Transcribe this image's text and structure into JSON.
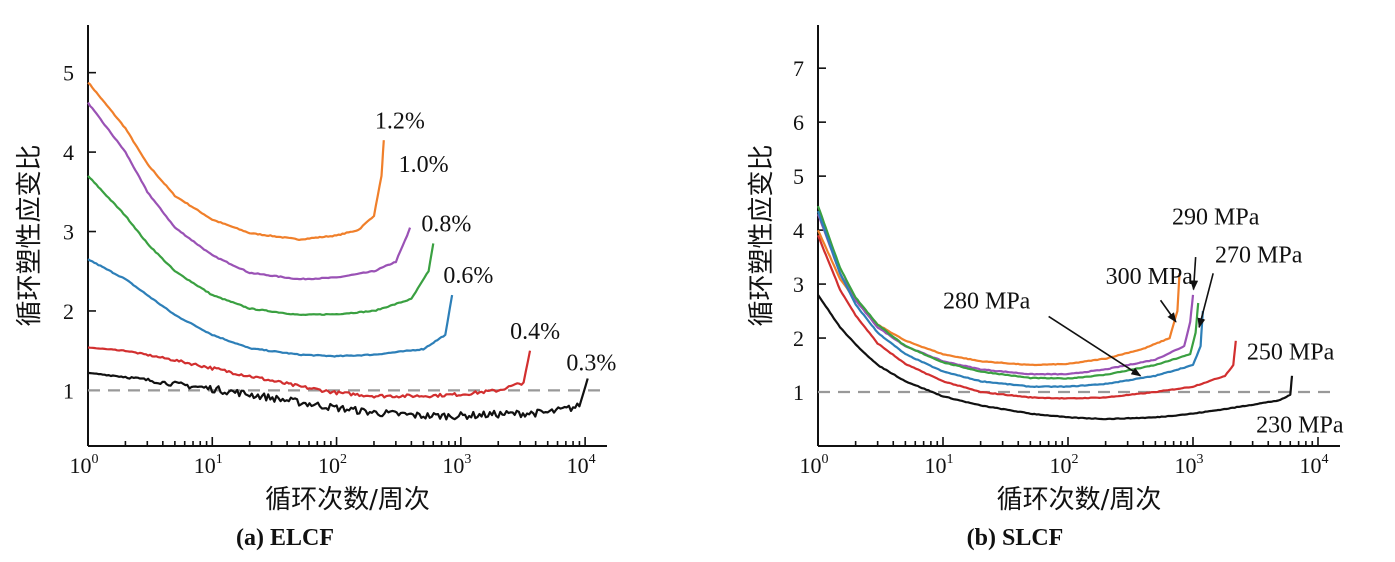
{
  "chart_data": [
    {
      "type": "line",
      "caption": "(a) ELCF",
      "xlabel": "循环次数/周次",
      "ylabel": "循环塑性应变比",
      "x_scale": "log",
      "xlim": [
        1,
        15000
      ],
      "ylim": [
        0.3,
        5.6
      ],
      "x_ticks": [
        1,
        10,
        100,
        1000,
        10000
      ],
      "x_tick_labels": [
        {
          "base": "10",
          "exp": "0"
        },
        {
          "base": "10",
          "exp": "1"
        },
        {
          "base": "10",
          "exp": "2"
        },
        {
          "base": "10",
          "exp": "3"
        },
        {
          "base": "10",
          "exp": "4"
        }
      ],
      "y_ticks": [
        1,
        2,
        3,
        4,
        5
      ],
      "y_tick_labels": [
        "1",
        "2",
        "3",
        "4",
        "5"
      ],
      "reference_line": 1.0,
      "series": [
        {
          "name": "1.2%",
          "color": "#f07f2a",
          "x": [
            1,
            2,
            3,
            5,
            10,
            20,
            50,
            100,
            150,
            200,
            230,
            240
          ],
          "y": [
            4.88,
            4.3,
            3.85,
            3.45,
            3.15,
            2.98,
            2.9,
            2.95,
            3.02,
            3.2,
            3.7,
            4.15
          ],
          "label_pos": [
            245,
            4.3
          ]
        },
        {
          "name": "1.0%",
          "color": "#9a52b5",
          "x": [
            1,
            2,
            3,
            5,
            10,
            20,
            50,
            100,
            200,
            300,
            370,
            390
          ],
          "y": [
            4.62,
            4.0,
            3.5,
            3.05,
            2.7,
            2.48,
            2.4,
            2.42,
            2.5,
            2.62,
            2.95,
            3.05
          ],
          "label_pos": [
            380,
            3.75
          ]
        },
        {
          "name": "0.8%",
          "color": "#3aa041",
          "x": [
            1,
            2,
            3,
            5,
            10,
            20,
            50,
            100,
            200,
            400,
            550,
            600
          ],
          "y": [
            3.7,
            3.2,
            2.85,
            2.5,
            2.2,
            2.03,
            1.95,
            1.96,
            2.0,
            2.15,
            2.5,
            2.85
          ],
          "label_pos": [
            580,
            3.0
          ]
        },
        {
          "name": "0.6%",
          "color": "#2d7fb8",
          "x": [
            1,
            2,
            3,
            5,
            10,
            20,
            50,
            100,
            200,
            500,
            750,
            850
          ],
          "y": [
            2.65,
            2.4,
            2.2,
            1.95,
            1.7,
            1.53,
            1.45,
            1.43,
            1.45,
            1.52,
            1.7,
            2.2
          ],
          "label_pos": [
            870,
            2.35
          ]
        },
        {
          "name": "0.4%",
          "color": "#d22f2f",
          "x": [
            1,
            2,
            5,
            10,
            20,
            50,
            100,
            200,
            500,
            1000,
            2000,
            3200,
            3600
          ],
          "y": [
            1.54,
            1.5,
            1.38,
            1.28,
            1.18,
            1.05,
            0.97,
            0.93,
            0.93,
            0.95,
            1.0,
            1.1,
            1.5
          ],
          "label_pos": [
            3000,
            1.65
          ]
        },
        {
          "name": "0.3%",
          "color": "#111111",
          "x": [
            1,
            2,
            5,
            10,
            20,
            50,
            100,
            200,
            500,
            1000,
            2000,
            5000,
            9000,
            10500
          ],
          "y": [
            1.22,
            1.17,
            1.08,
            1.02,
            0.95,
            0.85,
            0.78,
            0.72,
            0.68,
            0.68,
            0.7,
            0.72,
            0.8,
            1.15
          ],
          "label_pos": [
            8500,
            1.25
          ]
        }
      ]
    },
    {
      "type": "line",
      "caption": "(b) SLCF",
      "xlabel": "循环次数/周次",
      "ylabel": "循环塑性应变比",
      "x_scale": "log",
      "xlim": [
        1,
        15000
      ],
      "ylim": [
        0.0,
        7.8
      ],
      "x_ticks": [
        1,
        10,
        100,
        1000,
        10000
      ],
      "x_tick_labels": [
        {
          "base": "10",
          "exp": "0"
        },
        {
          "base": "10",
          "exp": "1"
        },
        {
          "base": "10",
          "exp": "2"
        },
        {
          "base": "10",
          "exp": "3"
        },
        {
          "base": "10",
          "exp": "4"
        }
      ],
      "y_ticks": [
        1,
        2,
        3,
        4,
        5,
        6,
        7
      ],
      "y_tick_labels": [
        "1",
        "2",
        "3",
        "4",
        "5",
        "6",
        "7"
      ],
      "reference_line": 1.0,
      "series": [
        {
          "name": "300 MPa",
          "color": "#f07f2a",
          "x": [
            1,
            1.5,
            2,
            3,
            5,
            10,
            20,
            50,
            100,
            200,
            400,
            650,
            750,
            780
          ],
          "y": [
            4.0,
            3.1,
            2.7,
            2.25,
            1.95,
            1.7,
            1.57,
            1.5,
            1.52,
            1.62,
            1.8,
            2.0,
            2.5,
            3.2
          ]
        },
        {
          "name": "290 MPa",
          "color": "#9a52b5",
          "x": [
            1,
            1.5,
            2,
            3,
            5,
            10,
            20,
            50,
            100,
            200,
            500,
            850,
            950,
            1000
          ],
          "y": [
            4.3,
            3.2,
            2.7,
            2.2,
            1.85,
            1.57,
            1.42,
            1.33,
            1.33,
            1.42,
            1.6,
            1.85,
            2.3,
            2.8
          ]
        },
        {
          "name": "270 MPa",
          "color": "#3aa041",
          "x": [
            1,
            1.5,
            2,
            3,
            5,
            10,
            20,
            50,
            100,
            200,
            500,
            950,
            1050,
            1100
          ],
          "y": [
            4.45,
            3.3,
            2.75,
            2.25,
            1.85,
            1.55,
            1.38,
            1.26,
            1.25,
            1.32,
            1.5,
            1.7,
            2.1,
            2.65
          ]
        },
        {
          "name": "280 MPa",
          "color": "#2d7fb8",
          "x": [
            1,
            1.5,
            2,
            3,
            5,
            10,
            20,
            50,
            100,
            200,
            500,
            1000,
            1150,
            1200
          ],
          "y": [
            4.35,
            3.2,
            2.62,
            2.1,
            1.7,
            1.38,
            1.2,
            1.1,
            1.1,
            1.15,
            1.3,
            1.5,
            1.85,
            2.5
          ]
        },
        {
          "name": "250 MPa",
          "color": "#d22f2f",
          "x": [
            1,
            1.5,
            2,
            3,
            5,
            10,
            20,
            50,
            100,
            200,
            500,
            1000,
            1800,
            2100,
            2200
          ],
          "y": [
            3.9,
            2.9,
            2.42,
            1.9,
            1.52,
            1.2,
            1.0,
            0.9,
            0.88,
            0.9,
            1.0,
            1.1,
            1.3,
            1.5,
            1.95
          ]
        },
        {
          "name": "230 MPa",
          "color": "#111111",
          "x": [
            1,
            1.5,
            2,
            3,
            5,
            10,
            20,
            50,
            100,
            200,
            500,
            1000,
            2000,
            5000,
            6000,
            6200
          ],
          "y": [
            2.8,
            2.2,
            1.88,
            1.5,
            1.2,
            0.92,
            0.75,
            0.6,
            0.53,
            0.5,
            0.53,
            0.6,
            0.7,
            0.85,
            0.95,
            1.3
          ]
        }
      ],
      "annotations": [
        {
          "text": "300 MPa",
          "text_pos": [
            200,
            3.0
          ],
          "arrow_from": [
            550,
            2.7
          ],
          "arrow_to": [
            730,
            2.3
          ]
        },
        {
          "text": "290 MPa",
          "text_pos": [
            680,
            4.1
          ],
          "arrow_from": [
            1050,
            3.5
          ],
          "arrow_to": [
            1010,
            2.9
          ]
        },
        {
          "text": "270 MPa",
          "text_pos": [
            1500,
            3.4
          ],
          "arrow_from": [
            1450,
            3.2
          ],
          "arrow_to": [
            1120,
            2.2
          ]
        },
        {
          "text": "280 MPa",
          "text_pos": [
            10,
            2.55
          ],
          "arrow_from": [
            70,
            2.4
          ],
          "arrow_to": [
            380,
            1.3
          ]
        },
        {
          "text": "250 MPa",
          "text_pos": [
            2700,
            1.6
          ],
          "arrow_from": null,
          "arrow_to": null
        },
        {
          "text": "230 MPa",
          "text_pos": [
            3200,
            0.25
          ],
          "arrow_from": null,
          "arrow_to": null
        }
      ]
    }
  ]
}
